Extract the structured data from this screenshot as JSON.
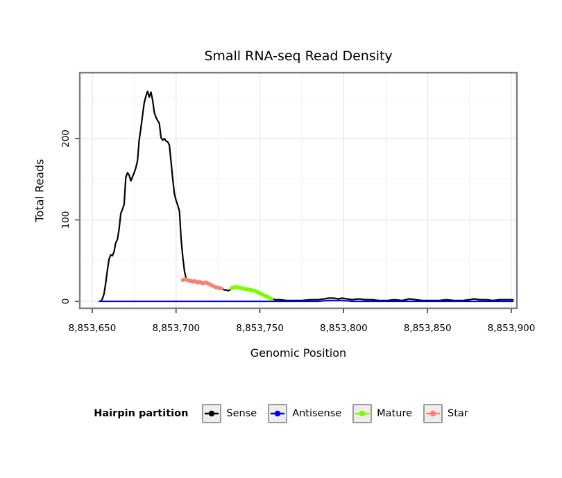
{
  "chart_data": {
    "type": "line",
    "title": "Small RNA-seq Read Density",
    "xlabel": "Genomic Position",
    "ylabel": "Total Reads",
    "x_ticks": [
      {
        "value": 8853650,
        "label": "8,853,650"
      },
      {
        "value": 8853700,
        "label": "8,853,700"
      },
      {
        "value": 8853750,
        "label": "8,853,750"
      },
      {
        "value": 8853800,
        "label": "8,853,800"
      },
      {
        "value": 8853850,
        "label": "8,853,850"
      },
      {
        "value": 8853900,
        "label": "8,853,900"
      }
    ],
    "y_ticks": [
      {
        "value": 0,
        "label": "0"
      },
      {
        "value": 100,
        "label": "100"
      },
      {
        "value": 200,
        "label": "200"
      }
    ],
    "x_minor_ticks": [
      8853675,
      8853725,
      8853775,
      8853825,
      8853875
    ],
    "y_minor_ticks": [
      50,
      150,
      250
    ],
    "xlim": [
      8853642,
      8853904
    ],
    "ylim": [
      -9,
      281
    ],
    "grid": true,
    "panel": {
      "background": "#ffffff",
      "border_color": "#7f7f7f",
      "grid_major_color": "#e4e4e4",
      "grid_minor_color": "#f2f2f2"
    },
    "legend": {
      "title": "Hairpin partition",
      "position": "bottom",
      "items": [
        {
          "label": "Sense",
          "color": "#000000"
        },
        {
          "label": "Antisense",
          "color": "#0000EE"
        },
        {
          "label": "Mature",
          "color": "#7CFC00"
        },
        {
          "label": "Star",
          "color": "#FA8072"
        }
      ]
    },
    "series": [
      {
        "name": "Sense",
        "color": "#000000",
        "width": 2.2,
        "points": [
          [
            8853655,
            0
          ],
          [
            8853656,
            3
          ],
          [
            8853657,
            9
          ],
          [
            8853658,
            22
          ],
          [
            8853659,
            38
          ],
          [
            8853660,
            52
          ],
          [
            8853661,
            57
          ],
          [
            8853662,
            56
          ],
          [
            8853663,
            61
          ],
          [
            8853664,
            72
          ],
          [
            8853665,
            76
          ],
          [
            8853666,
            89
          ],
          [
            8853667,
            108
          ],
          [
            8853668,
            113
          ],
          [
            8853669,
            119
          ],
          [
            8853670,
            152
          ],
          [
            8853671,
            158
          ],
          [
            8853672,
            155
          ],
          [
            8853673,
            148
          ],
          [
            8853674,
            153
          ],
          [
            8853675,
            158
          ],
          [
            8853676,
            164
          ],
          [
            8853677,
            173
          ],
          [
            8853678,
            198
          ],
          [
            8853679,
            213
          ],
          [
            8853680,
            229
          ],
          [
            8853681,
            244
          ],
          [
            8853682,
            252
          ],
          [
            8853683,
            258
          ],
          [
            8853684,
            251
          ],
          [
            8853685,
            257
          ],
          [
            8853686,
            247
          ],
          [
            8853687,
            232
          ],
          [
            8853688,
            226
          ],
          [
            8853689,
            222
          ],
          [
            8853690,
            219
          ],
          [
            8853691,
            201
          ],
          [
            8853692,
            198
          ],
          [
            8853693,
            200
          ],
          [
            8853694,
            197
          ],
          [
            8853695,
            196
          ],
          [
            8853696,
            192
          ],
          [
            8853697,
            171
          ],
          [
            8853698,
            150
          ],
          [
            8853699,
            132
          ],
          [
            8853700,
            124
          ],
          [
            8853701,
            118
          ],
          [
            8853702,
            111
          ],
          [
            8853703,
            77
          ],
          [
            8853704,
            54
          ],
          [
            8853705,
            37
          ],
          [
            8853706,
            28
          ],
          [
            8853707,
            26
          ],
          [
            8853708,
            25
          ],
          [
            8853709,
            25
          ],
          [
            8853710,
            24
          ],
          [
            8853711,
            25
          ],
          [
            8853712,
            24
          ],
          [
            8853713,
            23
          ],
          [
            8853714,
            24
          ],
          [
            8853715,
            23
          ],
          [
            8853716,
            22
          ],
          [
            8853717,
            23
          ],
          [
            8853718,
            23
          ],
          [
            8853719,
            22
          ],
          [
            8853720,
            21
          ],
          [
            8853721,
            20
          ],
          [
            8853722,
            19
          ],
          [
            8853723,
            18
          ],
          [
            8853724,
            17
          ],
          [
            8853725,
            17
          ],
          [
            8853726,
            16
          ],
          [
            8853727,
            16
          ],
          [
            8853728,
            15
          ],
          [
            8853729,
            14
          ],
          [
            8853730,
            14
          ],
          [
            8853731,
            13
          ],
          [
            8853732,
            14
          ],
          [
            8853733,
            15
          ],
          [
            8853734,
            17
          ],
          [
            8853735,
            17
          ],
          [
            8853736,
            18
          ],
          [
            8853737,
            17
          ],
          [
            8853738,
            17
          ],
          [
            8853739,
            16
          ],
          [
            8853740,
            16
          ],
          [
            8853741,
            15
          ],
          [
            8853742,
            15
          ],
          [
            8853743,
            15
          ],
          [
            8853744,
            14
          ],
          [
            8853745,
            14
          ],
          [
            8853746,
            13
          ],
          [
            8853747,
            13
          ],
          [
            8853748,
            12
          ],
          [
            8853749,
            11
          ],
          [
            8853750,
            10
          ],
          [
            8853751,
            9
          ],
          [
            8853752,
            8
          ],
          [
            8853753,
            7
          ],
          [
            8853754,
            6
          ],
          [
            8853755,
            5
          ],
          [
            8853756,
            4
          ],
          [
            8853757,
            3
          ],
          [
            8853759,
            2
          ],
          [
            8853762,
            2
          ],
          [
            8853766,
            1
          ],
          [
            8853770,
            1
          ],
          [
            8853775,
            1
          ],
          [
            8853780,
            2
          ],
          [
            8853785,
            2
          ],
          [
            8853788,
            3
          ],
          [
            8853791,
            4
          ],
          [
            8853794,
            4
          ],
          [
            8853797,
            3
          ],
          [
            8853799,
            4
          ],
          [
            8853802,
            3
          ],
          [
            8853805,
            2
          ],
          [
            8853809,
            3
          ],
          [
            8853813,
            2
          ],
          [
            8853817,
            2
          ],
          [
            8853821,
            1
          ],
          [
            8853826,
            1
          ],
          [
            8853830,
            2
          ],
          [
            8853835,
            1
          ],
          [
            8853839,
            3
          ],
          [
            8853843,
            2
          ],
          [
            8853847,
            1
          ],
          [
            8853852,
            1
          ],
          [
            8853857,
            1
          ],
          [
            8853861,
            2
          ],
          [
            8853866,
            1
          ],
          [
            8853871,
            1
          ],
          [
            8853875,
            2
          ],
          [
            8853878,
            3
          ],
          [
            8853881,
            2
          ],
          [
            8853885,
            2
          ],
          [
            8853889,
            1
          ],
          [
            8853893,
            2
          ],
          [
            8853897,
            2
          ],
          [
            8853901,
            2
          ]
        ]
      },
      {
        "name": "Antisense",
        "color": "#0000EE",
        "width": 2.2,
        "points": [
          [
            8853654,
            0
          ],
          [
            8853785,
            0
          ],
          [
            8853790,
            1
          ],
          [
            8853795,
            1
          ],
          [
            8853800,
            1
          ],
          [
            8853805,
            0
          ],
          [
            8853901,
            0
          ]
        ]
      },
      {
        "name": "Star",
        "color": "#FA8072",
        "width": 5.5,
        "points": [
          [
            8853704,
            26
          ],
          [
            8853705,
            27
          ],
          [
            8853706,
            27
          ],
          [
            8853707,
            26
          ],
          [
            8853708,
            25
          ],
          [
            8853709,
            25
          ],
          [
            8853710,
            24
          ],
          [
            8853711,
            25
          ],
          [
            8853712,
            24
          ],
          [
            8853713,
            23
          ],
          [
            8853714,
            24
          ],
          [
            8853715,
            23
          ],
          [
            8853716,
            22
          ],
          [
            8853717,
            23
          ],
          [
            8853718,
            23
          ],
          [
            8853719,
            22
          ],
          [
            8853720,
            21
          ],
          [
            8853721,
            20
          ],
          [
            8853722,
            19
          ],
          [
            8853723,
            18
          ],
          [
            8853724,
            17
          ],
          [
            8853725,
            17
          ],
          [
            8853726,
            16
          ],
          [
            8853727,
            16
          ]
        ]
      },
      {
        "name": "Mature",
        "color": "#7CFC00",
        "width": 5.5,
        "points": [
          [
            8853733,
            16
          ],
          [
            8853734,
            17
          ],
          [
            8853735,
            17
          ],
          [
            8853736,
            18
          ],
          [
            8853737,
            17
          ],
          [
            8853738,
            17
          ],
          [
            8853739,
            16
          ],
          [
            8853740,
            16
          ],
          [
            8853741,
            15
          ],
          [
            8853742,
            15
          ],
          [
            8853743,
            15
          ],
          [
            8853744,
            14
          ],
          [
            8853745,
            14
          ],
          [
            8853746,
            13
          ],
          [
            8853747,
            13
          ],
          [
            8853748,
            12
          ],
          [
            8853749,
            11
          ],
          [
            8853750,
            10
          ],
          [
            8853751,
            9
          ],
          [
            8853752,
            8
          ],
          [
            8853753,
            7
          ],
          [
            8853754,
            6
          ],
          [
            8853755,
            5
          ],
          [
            8853756,
            4
          ],
          [
            8853757,
            3
          ]
        ]
      }
    ]
  }
}
